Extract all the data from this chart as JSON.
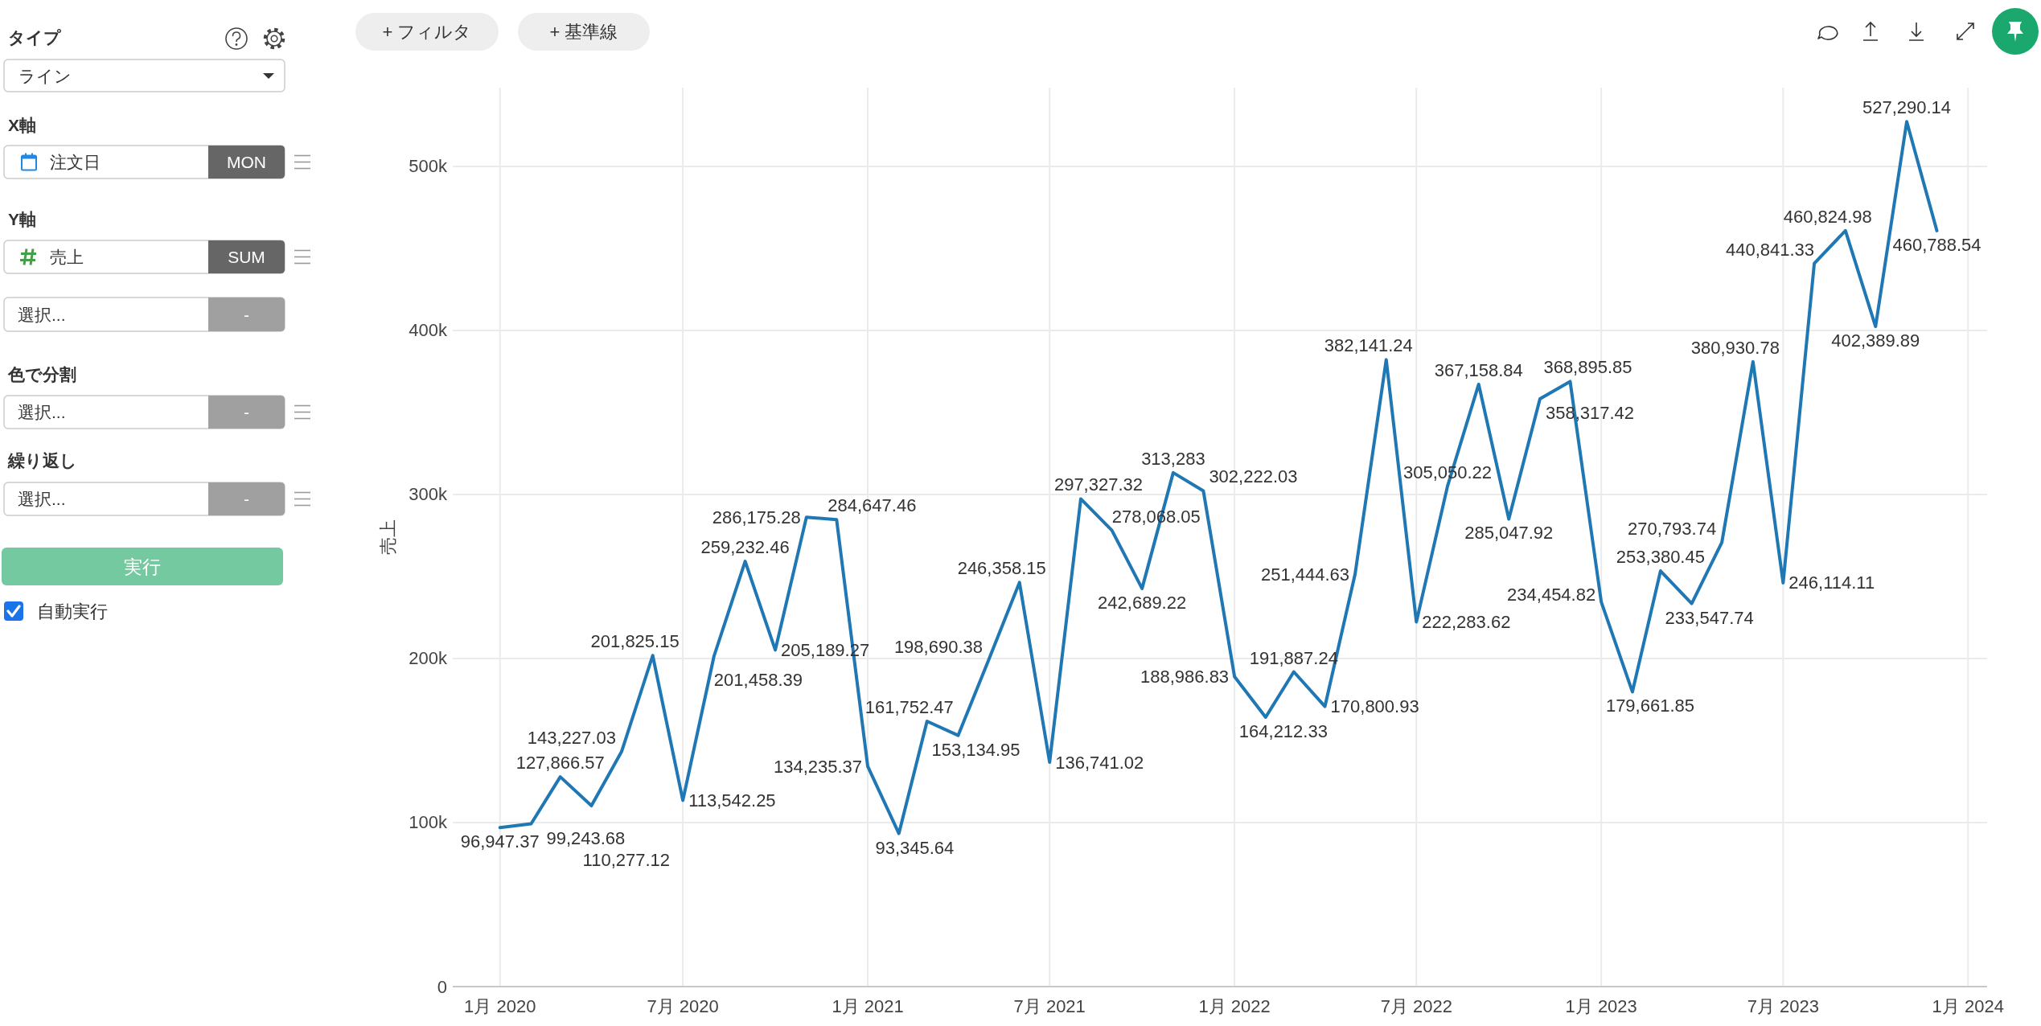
{
  "chart_data": [
    {
      "type": "other",
      "annotations": [
        "タイプ",
        "ライン",
        "X軸",
        "注文日",
        "MON",
        "Y軸",
        "売上",
        "SUM",
        "選択...",
        "-",
        "色で分割",
        "選択...",
        "-",
        "繰り返し",
        "選択...",
        "-",
        "実行",
        "自動実行"
      ]
    },
    {
      "type": "other",
      "annotations": [
        "+ フィルタ",
        "+ 基準線"
      ]
    },
    {
      "type": "line",
      "ylabel": "売上",
      "x": [
        "2020-01",
        "2020-02",
        "2020-03",
        "2020-04",
        "2020-05",
        "2020-06",
        "2020-07",
        "2020-08",
        "2020-09",
        "2020-10",
        "2020-11",
        "2020-12",
        "2021-01",
        "2021-02",
        "2021-03",
        "2021-04",
        "2021-05",
        "2021-06",
        "2021-07",
        "2021-08",
        "2021-09",
        "2021-10",
        "2021-11",
        "2021-12",
        "2022-01",
        "2022-02",
        "2022-03",
        "2022-04",
        "2022-05",
        "2022-06",
        "2022-07",
        "2022-08",
        "2022-09",
        "2022-10",
        "2022-11",
        "2022-12",
        "2023-01",
        "2023-02",
        "2023-03",
        "2023-04",
        "2023-05",
        "2023-06",
        "2023-07",
        "2023-08",
        "2023-09",
        "2023-10",
        "2023-11",
        "2023-12"
      ],
      "series": [
        {
          "color": "#1f77b4",
          "values": [
            96947.37,
            99243.68,
            127866.57,
            110277.12,
            143227.03,
            201825.15,
            113542.25,
            201458.39,
            259232.46,
            205189.27,
            286175.28,
            284647.46,
            134235.37,
            93345.64,
            161752.47,
            153134.95,
            198690.38,
            246358.15,
            136741.02,
            297327.32,
            278068.05,
            242689.22,
            313283,
            302222.03,
            188986.83,
            164212.33,
            191887.24,
            170800.93,
            251444.63,
            382141.24,
            222283.62,
            305050.22,
            367158.84,
            285047.92,
            358317.42,
            368895.85,
            234454.82,
            179661.85,
            253380.45,
            233547.74,
            270793.74,
            380930.78,
            246114.11,
            440841.33,
            460824.98,
            402389.89,
            527290.14,
            460788.54
          ],
          "value_labels": [
            "96,947.37",
            "99,243.68",
            "127,866.57",
            "110,277.12",
            "143,227.03",
            "201,825.15",
            "113,542.25",
            "201,458.39",
            "259,232.46",
            "205,189.27",
            "286,175.28",
            "284,647.46",
            "134,235.37",
            "93,345.64",
            "161,752.47",
            "153,134.95",
            "198,690.38",
            "246,358.15",
            "136,741.02",
            "297,327.32",
            "278,068.05",
            "242,689.22",
            "313,283",
            "302,222.03",
            "188,986.83",
            "164,212.33",
            "191,887.24",
            "170,800.93",
            "251,444.63",
            "382,141.24",
            "222,283.62",
            "305,050.22",
            "367,158.84",
            "285,047.92",
            "358,317.42",
            "368,895.85",
            "234,454.82",
            "179,661.85",
            "253,380.45",
            "233,547.74",
            "270,793.74",
            "380,930.78",
            "246,114.11",
            "440,841.33",
            "460,824.98",
            "402,389.89",
            "527,290.14",
            "460,788.54"
          ]
        }
      ],
      "xlim": [
        "2019-11-15",
        "2024-01-20"
      ],
      "xticks": [
        {
          "value": "2020-01",
          "label": "1月 2020"
        },
        {
          "value": "2020-07",
          "label": "7月 2020"
        },
        {
          "value": "2021-01",
          "label": "1月 2021"
        },
        {
          "value": "2021-07",
          "label": "7月 2021"
        },
        {
          "value": "2022-01",
          "label": "1月 2022"
        },
        {
          "value": "2022-07",
          "label": "7月 2022"
        },
        {
          "value": "2023-01",
          "label": "1月 2023"
        },
        {
          "value": "2023-07",
          "label": "7月 2023"
        },
        {
          "value": "2024-01",
          "label": "1月 2024"
        }
      ],
      "ylim": [
        0,
        548000
      ],
      "yticks": [
        0,
        {
          "value": 100000,
          "label": "100k"
        },
        {
          "value": 200000,
          "label": "200k"
        },
        {
          "value": 300000,
          "label": "300k"
        },
        {
          "value": 400000,
          "label": "400k"
        },
        {
          "value": 500000,
          "label": "500k"
        }
      ],
      "grid": true,
      "line_style": "solid"
    }
  ]
}
